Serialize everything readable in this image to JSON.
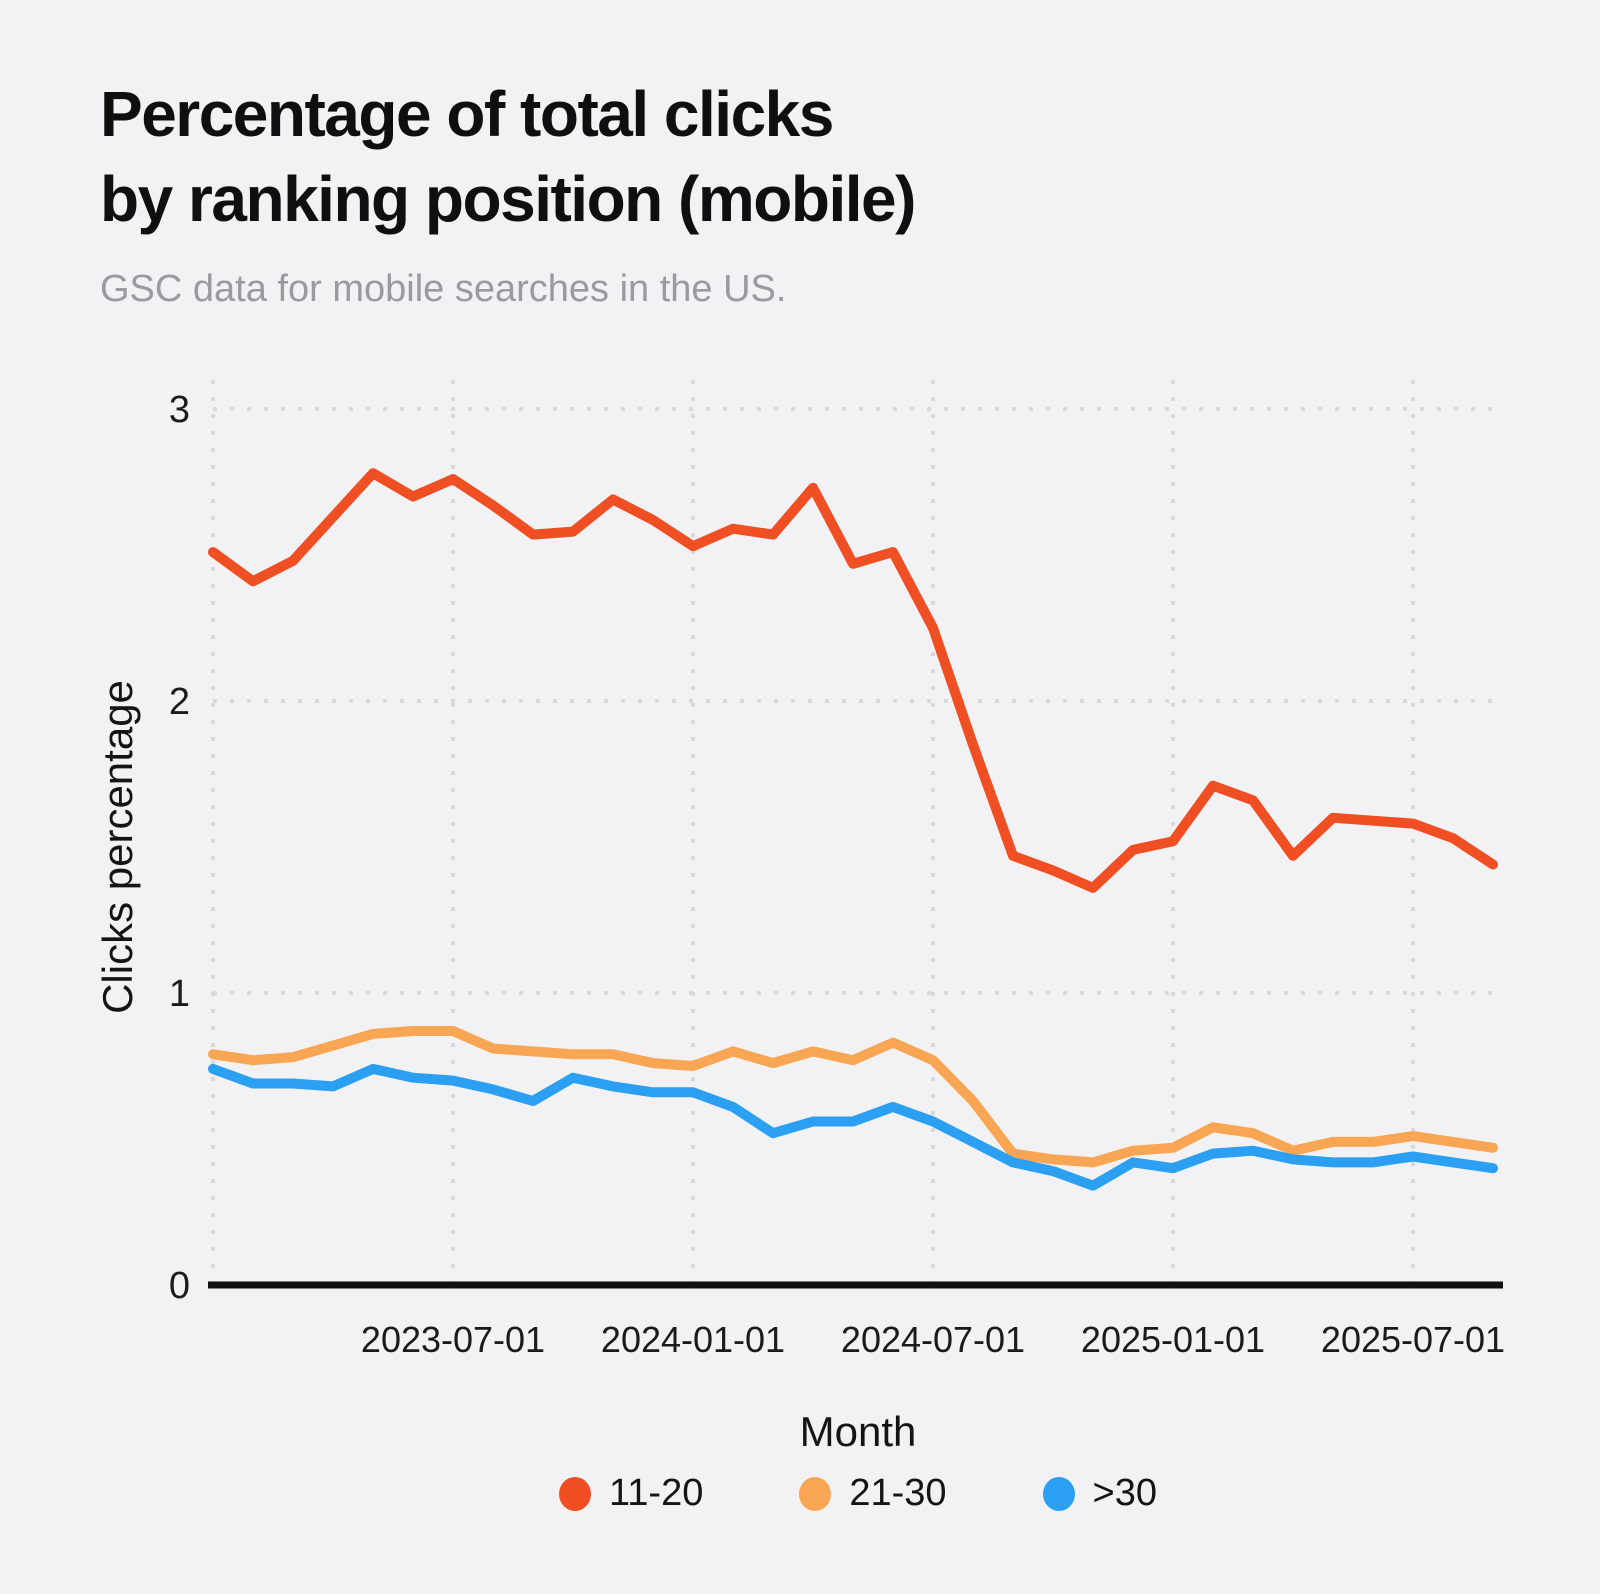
{
  "title": "Percentage of total clicks\nby ranking position (mobile)",
  "subtitle": "GSC data for mobile searches in the US.",
  "colors": {
    "background": "#F2F2F4",
    "title_text": "#0F0F10",
    "subtitle_text": "#9A9A9F",
    "grid": "#D9D9DC",
    "axis_line": "#111111",
    "tick_text": "#1B1B1D",
    "series_11_20": "#F04E23",
    "series_21_30": "#F8A653",
    "series_gt_30": "#2BA0F2"
  },
  "chart_data": {
    "type": "line",
    "title": "Percentage of total clicks by ranking position (mobile)",
    "subtitle": "GSC data for mobile searches in the US.",
    "xlabel": "Month",
    "ylabel": "Clicks percentage",
    "ylim": [
      0,
      3.1
    ],
    "yticks": [
      0,
      1,
      2,
      3
    ],
    "xticks": [
      "2023-07-01",
      "2024-01-01",
      "2024-07-01",
      "2025-01-01",
      "2025-07-01"
    ],
    "grid": "dotted",
    "legend_position": "bottom",
    "x": [
      "2023-01-01",
      "2023-02-01",
      "2023-03-01",
      "2023-04-01",
      "2023-05-01",
      "2023-06-01",
      "2023-07-01",
      "2023-08-01",
      "2023-09-01",
      "2023-10-01",
      "2023-11-01",
      "2023-12-01",
      "2024-01-01",
      "2024-02-01",
      "2024-03-01",
      "2024-04-01",
      "2024-05-01",
      "2024-06-01",
      "2024-07-01",
      "2024-08-01",
      "2024-09-01",
      "2024-10-01",
      "2024-11-01",
      "2024-12-01",
      "2025-01-01",
      "2025-02-01",
      "2025-03-01",
      "2025-04-01",
      "2025-05-01",
      "2025-06-01",
      "2025-07-01",
      "2025-08-01",
      "2025-09-01"
    ],
    "series": [
      {
        "name": "11-20",
        "color": "#F04E23",
        "values": [
          2.51,
          2.41,
          2.48,
          2.63,
          2.78,
          2.7,
          2.76,
          2.67,
          2.57,
          2.58,
          2.69,
          2.62,
          2.53,
          2.59,
          2.57,
          2.73,
          2.47,
          2.51,
          2.25,
          1.85,
          1.47,
          1.42,
          1.36,
          1.49,
          1.52,
          1.71,
          1.66,
          1.47,
          1.6,
          1.59,
          1.58,
          1.53,
          1.44
        ]
      },
      {
        "name": "21-30",
        "color": "#F8A653",
        "values": [
          0.79,
          0.77,
          0.78,
          0.82,
          0.86,
          0.87,
          0.87,
          0.81,
          0.8,
          0.79,
          0.79,
          0.76,
          0.75,
          0.8,
          0.76,
          0.8,
          0.77,
          0.83,
          0.77,
          0.63,
          0.45,
          0.43,
          0.42,
          0.46,
          0.47,
          0.54,
          0.52,
          0.46,
          0.49,
          0.49,
          0.51,
          0.49,
          0.47
        ]
      },
      {
        "name": ">30",
        "color": "#2BA0F2",
        "values": [
          0.74,
          0.69,
          0.69,
          0.68,
          0.74,
          0.71,
          0.7,
          0.67,
          0.63,
          0.71,
          0.68,
          0.66,
          0.66,
          0.61,
          0.52,
          0.56,
          0.56,
          0.61,
          0.56,
          0.49,
          0.42,
          0.39,
          0.34,
          0.42,
          0.4,
          0.45,
          0.46,
          0.43,
          0.42,
          0.42,
          0.44,
          0.42,
          0.4
        ]
      }
    ]
  }
}
